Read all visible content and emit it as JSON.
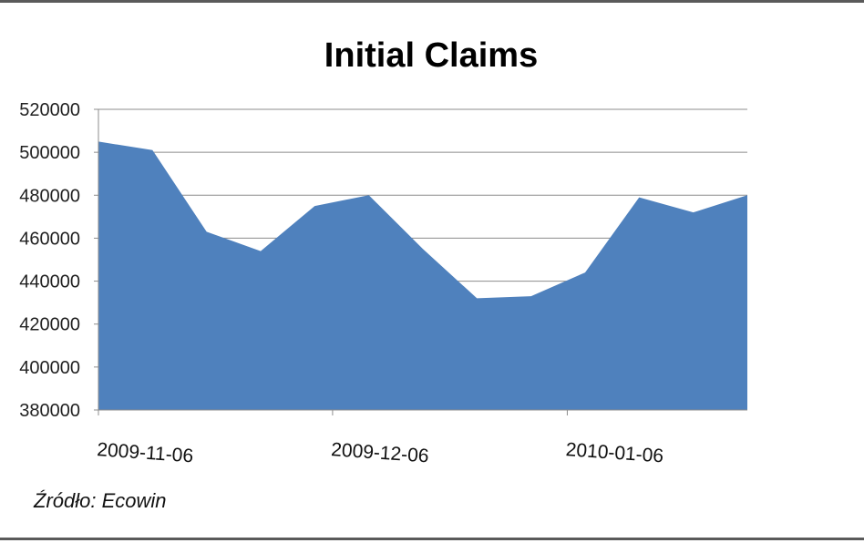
{
  "chart_data": {
    "type": "area",
    "title": "Initial Claims",
    "source_label": "Źródło: Ecowin",
    "xlabel": "",
    "ylabel": "",
    "x_tick_labels": [
      "2009-11-06",
      "2009-12-06",
      "2010-01-06"
    ],
    "y_tick_labels": [
      "380000",
      "400000",
      "420000",
      "440000",
      "460000",
      "480000",
      "500000",
      "520000"
    ],
    "ylim": [
      380000,
      520000
    ],
    "grid": true,
    "legend": "none",
    "color": "#4f81bd",
    "series": [
      {
        "values": [
          505000,
          501000,
          463000,
          454000,
          475000,
          480000,
          455000,
          432000,
          433000,
          444000,
          479000,
          472000,
          480000
        ]
      }
    ]
  }
}
